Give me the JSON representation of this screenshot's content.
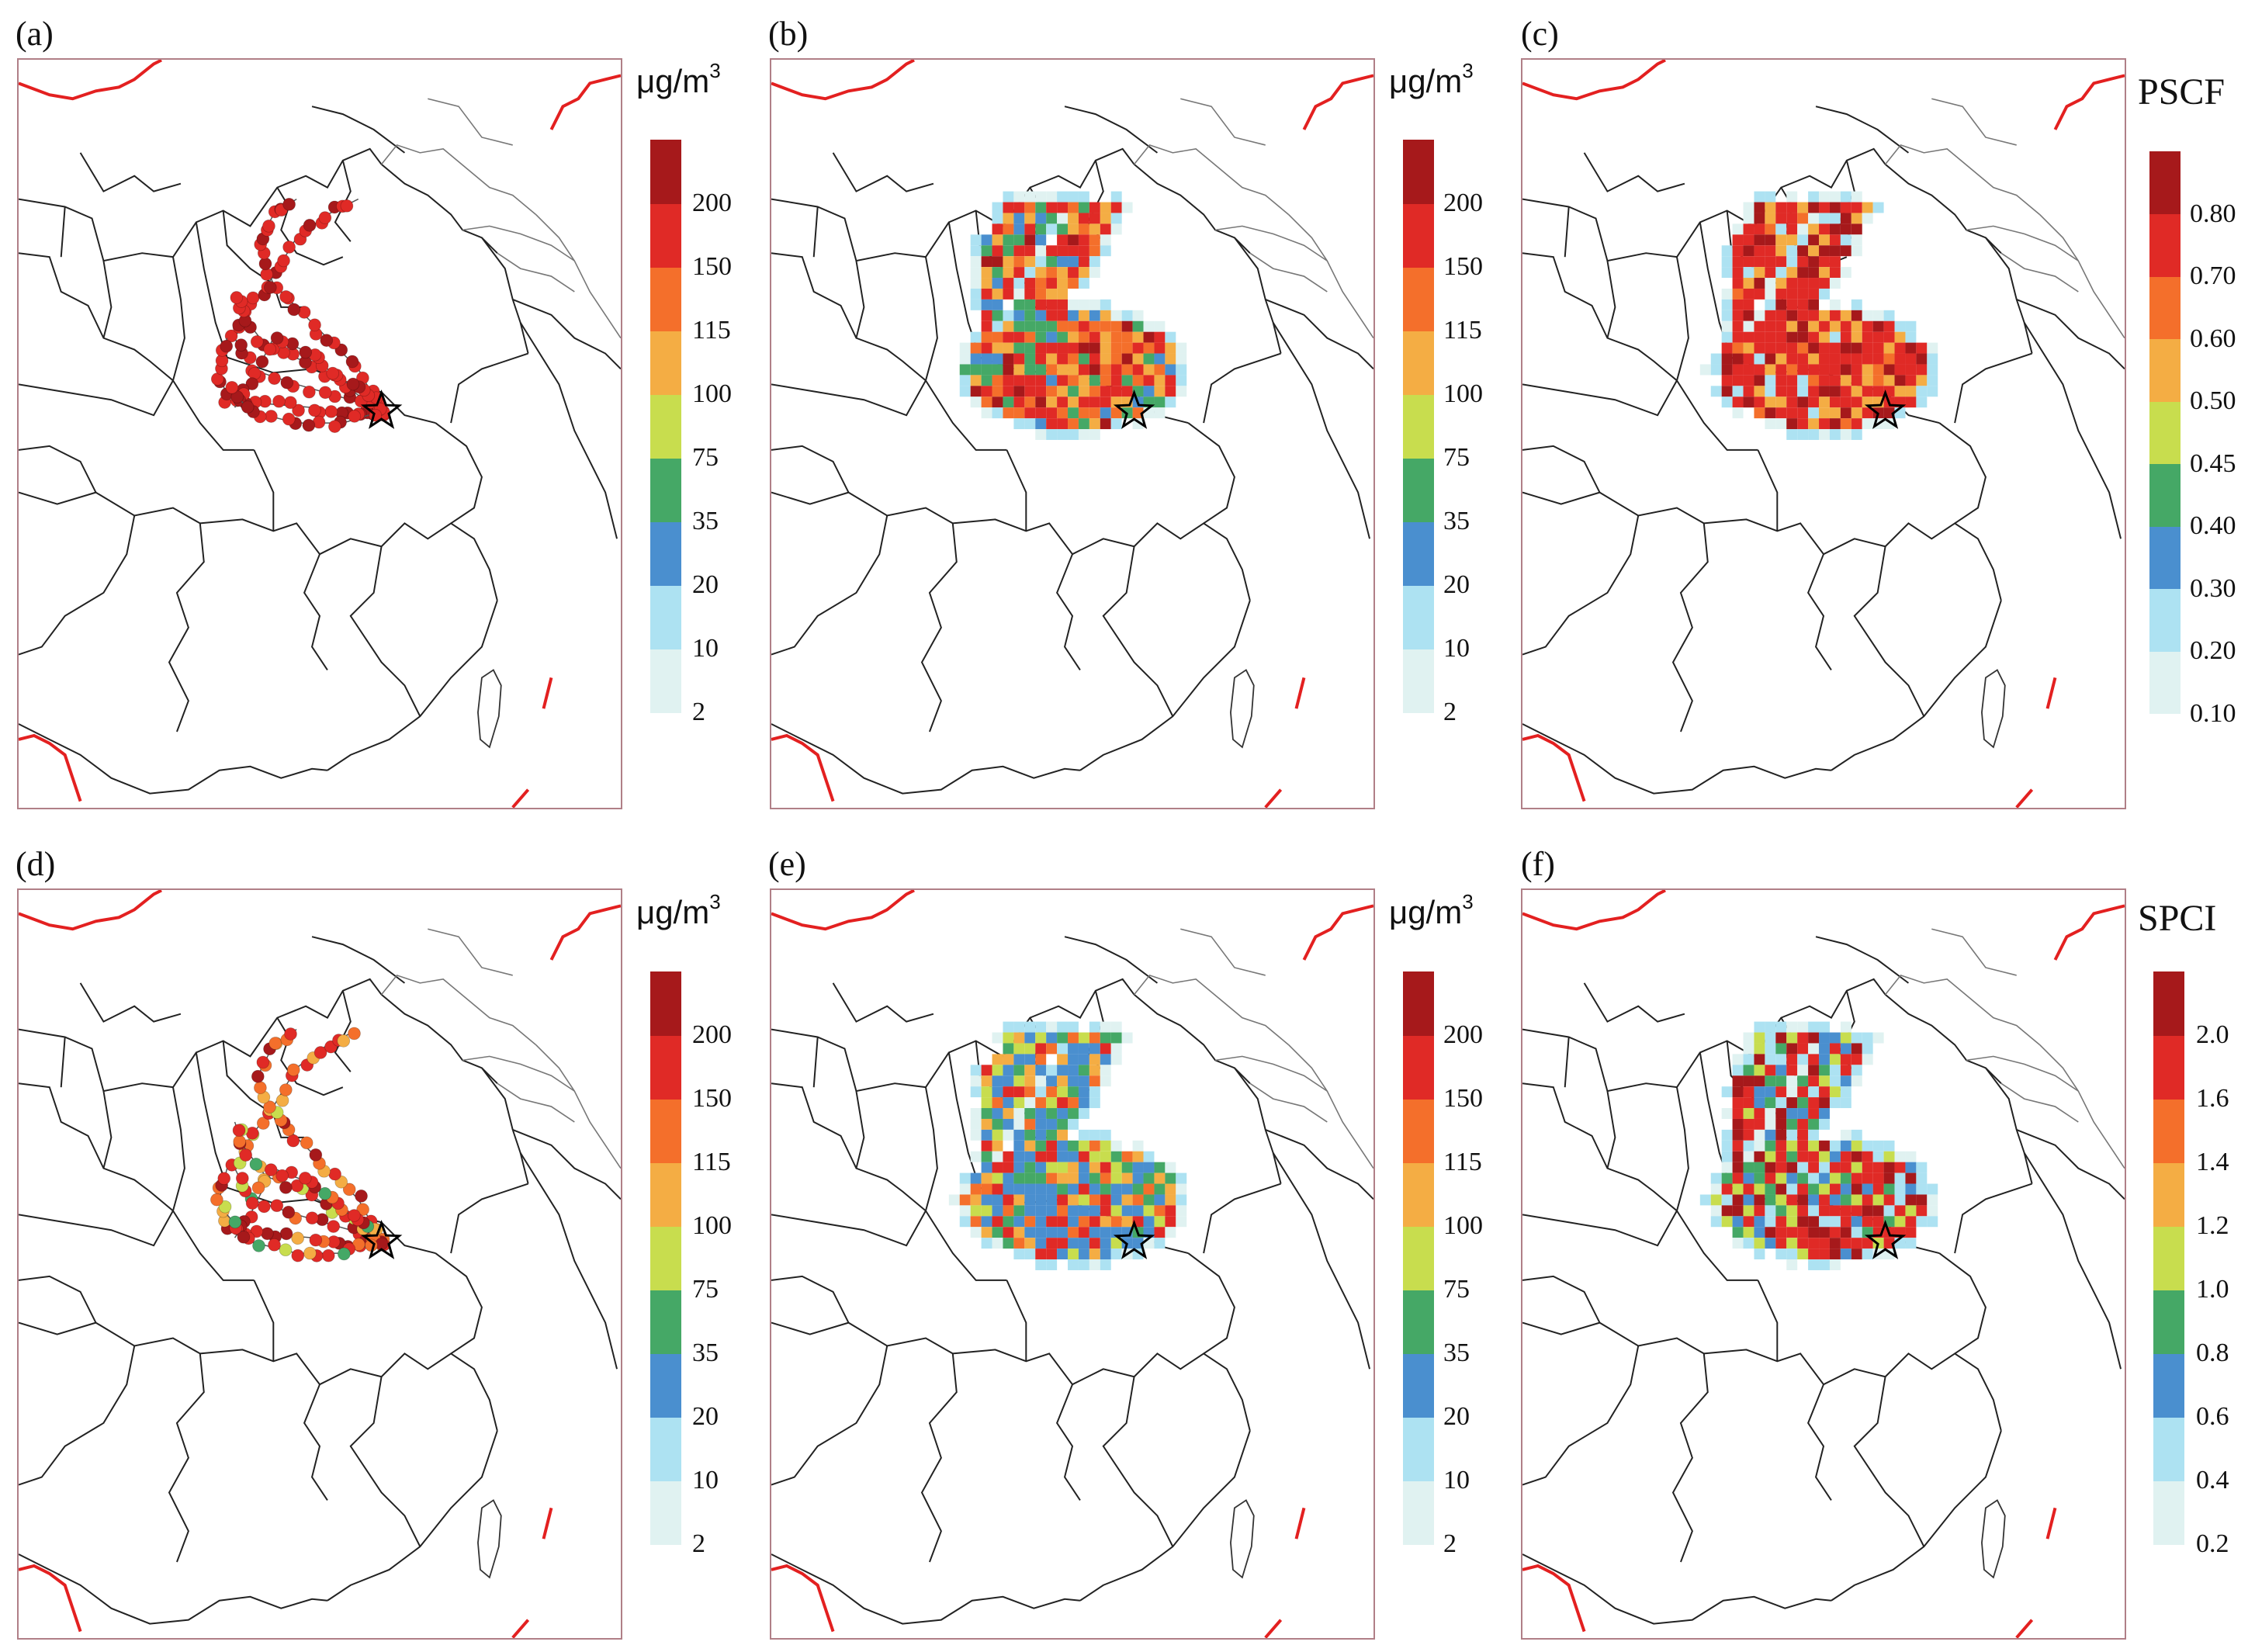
{
  "panels": [
    {
      "label": "(a)",
      "kind": "traj"
    },
    {
      "label": "(b)",
      "kind": "grid"
    },
    {
      "label": "(c)",
      "kind": "grid"
    },
    {
      "label": "(d)",
      "kind": "traj"
    },
    {
      "label": "(e)",
      "kind": "grid"
    },
    {
      "label": "(f)",
      "kind": "grid"
    }
  ],
  "units": {
    "ug_prefix": "μg/m",
    "ug_exp": "3"
  },
  "legend_titles": {
    "pscf": "PSCF",
    "spci": "SPCI"
  },
  "colors": [
    "#e0f2f1",
    "#ade2f2",
    "#4a8fcf",
    "#45a866",
    "#c8dd4e",
    "#f4ad44",
    "#f46f2b",
    "#e02a26",
    "#a6191b"
  ],
  "colorbars": {
    "conc": {
      "ticks": [
        "200",
        "150",
        "115",
        "100",
        "75",
        "35",
        "20",
        "10",
        "2"
      ]
    },
    "pscf": {
      "ticks": [
        "0.80",
        "0.70",
        "0.60",
        "0.50",
        "0.45",
        "0.40",
        "0.30",
        "0.20",
        "0.10"
      ]
    },
    "spci": {
      "ticks": [
        "2.0",
        "1.6",
        "1.4",
        "1.2",
        "1.0",
        "0.8",
        "0.6",
        "0.4",
        "0.2"
      ]
    }
  },
  "icons": {
    "receptor": "star-icon"
  }
}
